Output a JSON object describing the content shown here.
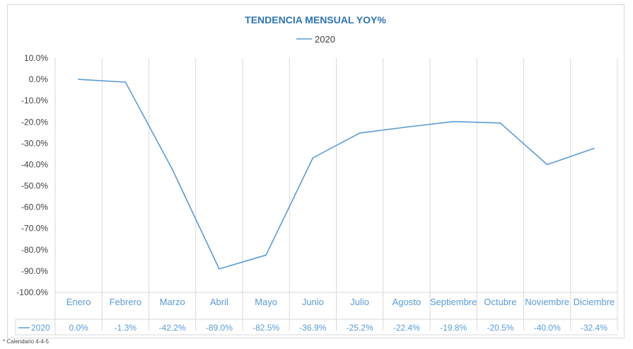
{
  "chart_data": {
    "type": "line",
    "title": "TENDENCIA MENSUAL YOY%",
    "categories": [
      "Enero",
      "Febrero",
      "Marzo",
      "Abril",
      "Mayo",
      "Junio",
      "Julio",
      "Agosto",
      "Septiembre",
      "Octubre",
      "Noviembre",
      "Diciembre"
    ],
    "series": [
      {
        "name": "2020",
        "values": [
          0.0,
          -1.3,
          -42.2,
          -89.0,
          -82.5,
          -36.9,
          -25.2,
          -22.4,
          -19.8,
          -20.5,
          -40.0,
          -32.4
        ],
        "labels": [
          "0.0%",
          "-1.3%",
          "-42.2%",
          "-89.0%",
          "-82.5%",
          "-36.9%",
          "-25.2%",
          "-22.4%",
          "-19.8%",
          "-20.5%",
          "-40.0%",
          "-32.4%"
        ]
      }
    ],
    "ylim": [
      -100,
      10
    ],
    "yticks": [
      "10.0%",
      "0.0%",
      "-10.0%",
      "-20.0%",
      "-30.0%",
      "-40.0%",
      "-50.0%",
      "-60.0%",
      "-70.0%",
      "-80.0%",
      "-90.0%",
      "-100.0%"
    ],
    "legend_position": "top",
    "data_table": true,
    "grid": "vertical",
    "colors": {
      "series": "#5b9bd5",
      "title": "#2e75b6",
      "axis_text": "#404040",
      "grid": "#d9d9d9"
    }
  },
  "footnote": "* Calendario 4-4-5"
}
